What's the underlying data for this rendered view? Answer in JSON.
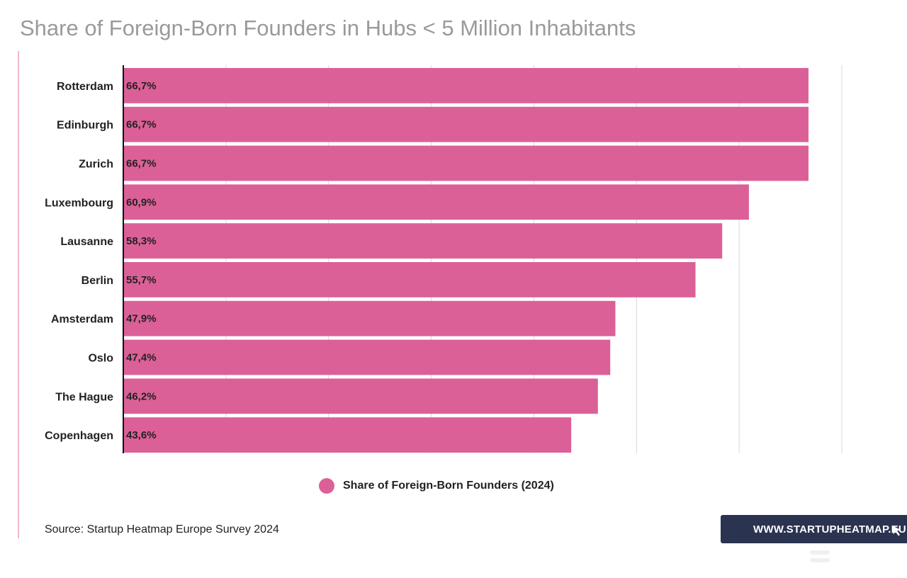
{
  "title": "Share of Foreign-Born Founders in Hubs < 5 Million Inhabitants",
  "colors": {
    "bar": "#dc6098",
    "accent_line": "#f2b8cf",
    "badge": "#2a3450",
    "grid": "#d8d8d8",
    "axis": "#111111"
  },
  "chart_data": {
    "type": "bar",
    "orientation": "horizontal",
    "categories": [
      "Rotterdam",
      "Edinburgh",
      "Zurich",
      "Luxembourg",
      "Lausanne",
      "Berlin",
      "Amsterdam",
      "Oslo",
      "The Hague",
      "Copenhagen"
    ],
    "series": [
      {
        "name": "Share of Foreign-Born Founders (2024)",
        "values": [
          66.7,
          66.7,
          66.7,
          60.9,
          58.3,
          55.7,
          47.9,
          47.4,
          46.2,
          43.6
        ],
        "labels": [
          "66,7%",
          "66,7%",
          "66,7%",
          "60,9%",
          "58,3%",
          "55,7%",
          "47,9%",
          "47,4%",
          "46,2%",
          "43,6%"
        ]
      }
    ],
    "xlim": [
      0,
      70
    ],
    "grid": true,
    "x_tick_labels": "none",
    "legend_position": "bottom"
  },
  "legend": {
    "label": "Share of Foreign-Born Founders (2024)"
  },
  "source": "Source: Startup Heatmap Europe Survey 2024",
  "badge": {
    "text": "WWW.STARTUPHEATMAP.EU",
    "icon": "cursor-icon"
  },
  "menu": {
    "icon": "menu-icon"
  }
}
